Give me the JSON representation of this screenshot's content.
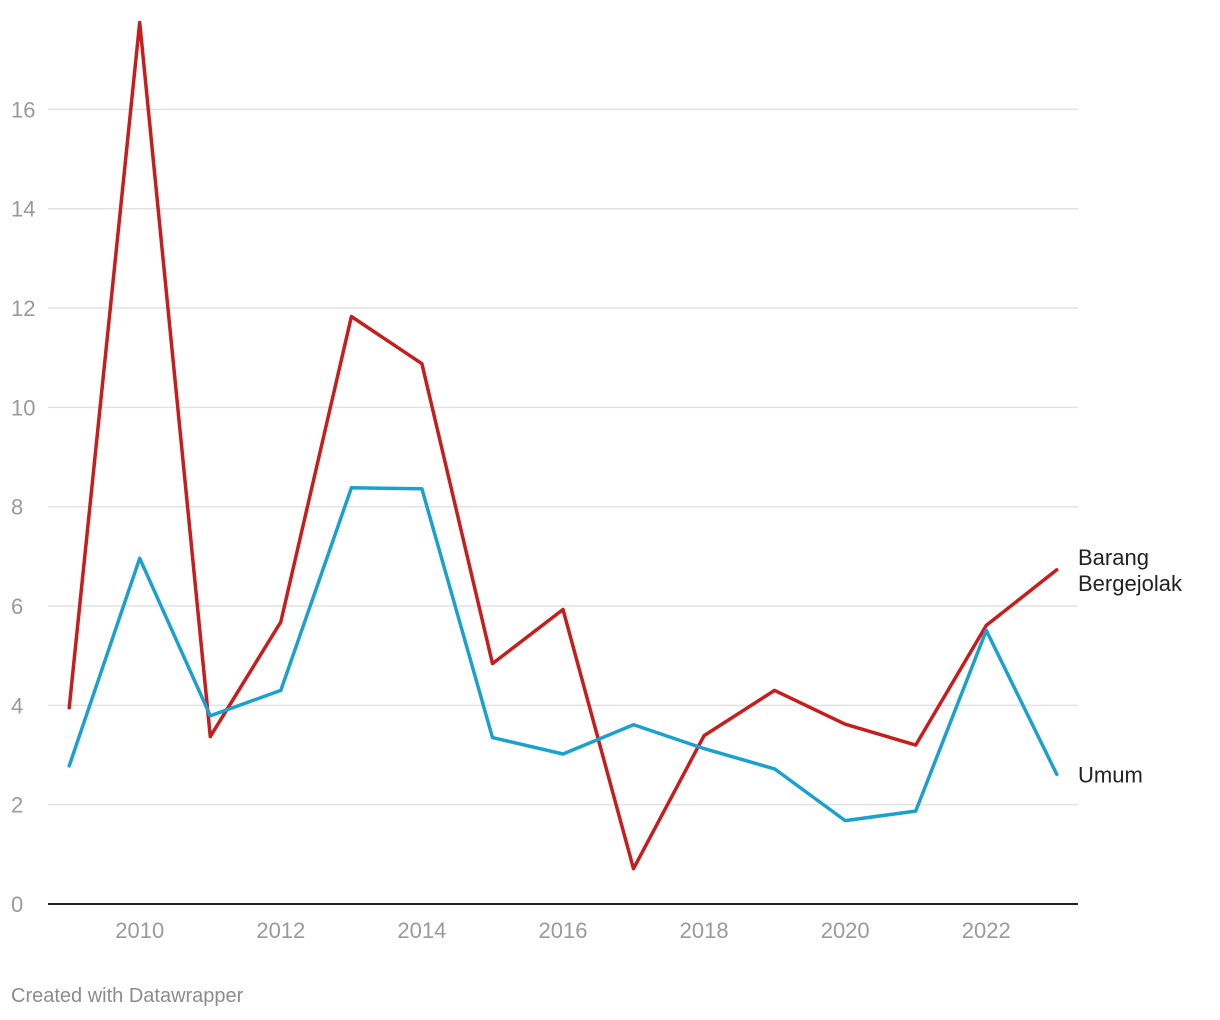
{
  "chart_data": {
    "type": "line",
    "title": "",
    "xlabel": "",
    "ylabel": "",
    "x": [
      2009,
      2010,
      2011,
      2012,
      2013,
      2014,
      2015,
      2016,
      2017,
      2018,
      2019,
      2020,
      2021,
      2022,
      2023
    ],
    "xticks": [
      "2010",
      "2012",
      "2014",
      "2016",
      "2018",
      "2020",
      "2022"
    ],
    "yticks": [
      "0",
      "2",
      "4",
      "6",
      "8",
      "10",
      "12",
      "14",
      "16"
    ],
    "ylim": [
      0,
      17.8
    ],
    "xlim": [
      2008.7,
      2023.3
    ],
    "grid": true,
    "legend": "direct labels at line ends",
    "series": [
      {
        "name": "Barang Bergejolak",
        "label_lines": [
          "Barang",
          "Bergejolak"
        ],
        "color": "#c71e1d",
        "values": [
          3.95,
          17.75,
          3.37,
          5.68,
          11.83,
          10.88,
          4.84,
          5.93,
          0.71,
          3.39,
          4.3,
          3.62,
          3.2,
          5.61,
          6.73
        ]
      },
      {
        "name": "Umum",
        "label_lines": [
          "Umum"
        ],
        "color": "#1ba1ce",
        "values": [
          2.78,
          6.96,
          3.79,
          4.3,
          8.38,
          8.36,
          3.35,
          3.02,
          3.61,
          3.13,
          2.72,
          1.68,
          1.87,
          5.51,
          2.61
        ]
      }
    ]
  },
  "credit": "Created with Datawrapper"
}
